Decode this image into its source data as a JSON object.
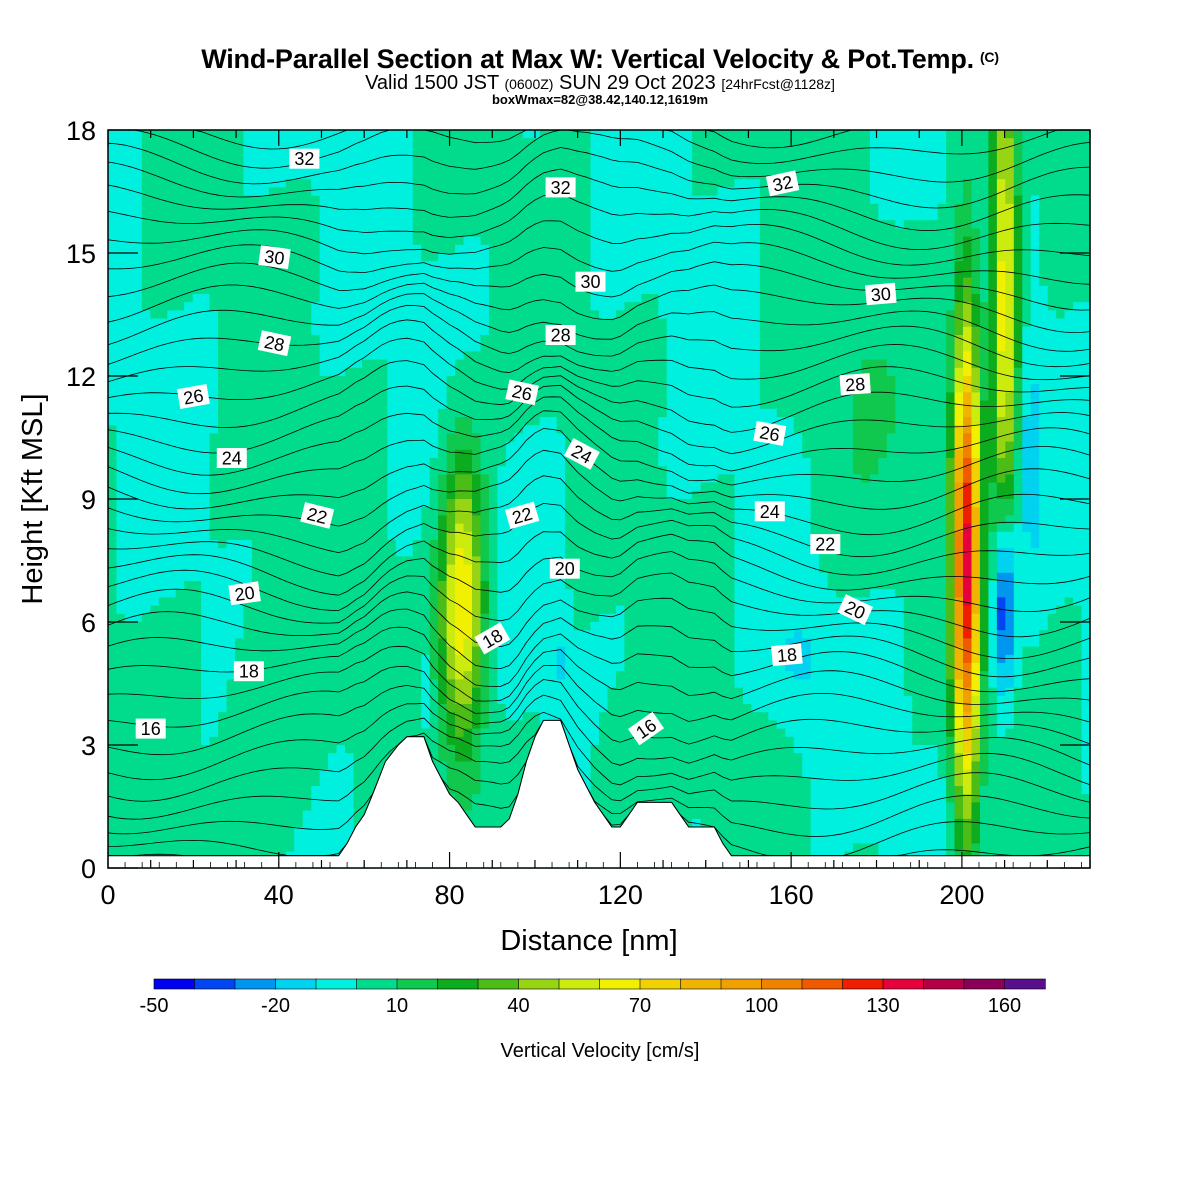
{
  "header": {
    "title": "Wind-Parallel Section at Max W: Vertical Velocity & Pot.Temp.",
    "copyright": "(C)",
    "valid_prefix": "Valid 1500 JST",
    "valid_utc": "(0600Z)",
    "valid_date": "SUN 29 Oct 2023",
    "forecast": "[24hrFcst@1128z]",
    "box_wmax": "boxWmax=82@38.42,140.12,1619m"
  },
  "chart_data": {
    "type": "heatmap",
    "xlabel": "Distance [nm]",
    "ylabel": "Height [Kft MSL]",
    "xlim": [
      0,
      230
    ],
    "ylim": [
      0,
      18
    ],
    "x_ticks": [
      0,
      40,
      80,
      120,
      160,
      200
    ],
    "y_ticks": [
      0,
      3,
      6,
      9,
      12,
      15,
      18
    ],
    "colorbar": {
      "label": "Vertical Velocity [cm/s]",
      "levels": [
        -50,
        -40,
        -30,
        -20,
        -10,
        0,
        10,
        20,
        30,
        40,
        50,
        60,
        70,
        80,
        90,
        100,
        110,
        120,
        130,
        140,
        150,
        160,
        170
      ],
      "tick_labels": [
        "-50",
        "-20",
        "10",
        "40",
        "70",
        "100",
        "130",
        "160"
      ],
      "colors": [
        "#0000f0",
        "#0046f0",
        "#0096f0",
        "#00d2f0",
        "#00f0e0",
        "#00dc8c",
        "#10c84e",
        "#0cac1e",
        "#4cbc16",
        "#96d414",
        "#ccec10",
        "#f0f000",
        "#f0d200",
        "#f0b400",
        "#f0a000",
        "#f08200",
        "#f05a00",
        "#f01e00",
        "#e6003c",
        "#b40046",
        "#8c005a",
        "#5a0f8c"
      ]
    },
    "potential_temperature_labels": [
      "16",
      "18",
      "20",
      "22",
      "24",
      "26",
      "28",
      "30",
      "32"
    ],
    "updrafts": [
      {
        "x": 83,
        "z": 6.5,
        "peak": 70
      },
      {
        "x": 201,
        "z": 7.5,
        "peak": 130
      },
      {
        "x": 210,
        "z": 14,
        "peak": 70
      }
    ],
    "downdrafts": [
      {
        "x": 210,
        "z": 6.5,
        "peak": -50
      }
    ],
    "terrain": [
      [
        0,
        0.3
      ],
      [
        54,
        0.3
      ],
      [
        56,
        0.6
      ],
      [
        58,
        1.0
      ],
      [
        60,
        1.3
      ],
      [
        62,
        1.8
      ],
      [
        65,
        2.6
      ],
      [
        68,
        3.0
      ],
      [
        70,
        3.2
      ],
      [
        74,
        3.2
      ],
      [
        76,
        2.6
      ],
      [
        78,
        2.2
      ],
      [
        80,
        1.8
      ],
      [
        82,
        1.6
      ],
      [
        84,
        1.3
      ],
      [
        86,
        1.0
      ],
      [
        92,
        1.0
      ],
      [
        94,
        1.2
      ],
      [
        96,
        1.8
      ],
      [
        98,
        2.6
      ],
      [
        100,
        3.2
      ],
      [
        102,
        3.6
      ],
      [
        106,
        3.6
      ],
      [
        108,
        3.0
      ],
      [
        110,
        2.4
      ],
      [
        112,
        2.0
      ],
      [
        114,
        1.6
      ],
      [
        116,
        1.3
      ],
      [
        118,
        1.0
      ],
      [
        120,
        1.0
      ],
      [
        122,
        1.3
      ],
      [
        124,
        1.6
      ],
      [
        132,
        1.6
      ],
      [
        134,
        1.3
      ],
      [
        136,
        1.0
      ],
      [
        142,
        1.0
      ],
      [
        144,
        0.6
      ],
      [
        146,
        0.3
      ],
      [
        230,
        0.3
      ]
    ]
  }
}
